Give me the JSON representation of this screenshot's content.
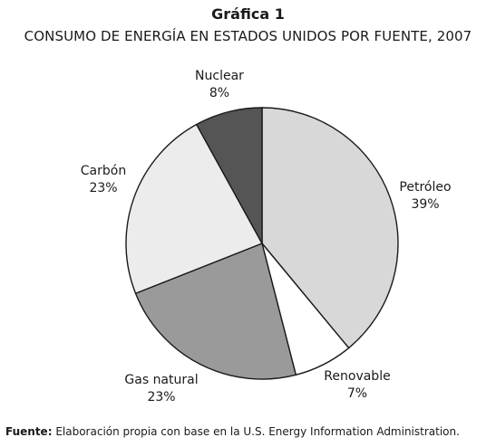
{
  "header": {
    "label": "Gráfica 1",
    "title": "CONSUMO DE ENERGÍA EN ESTADOS UNIDOS POR FUENTE, 2007"
  },
  "chart_data": {
    "type": "pie",
    "title": "CONSUMO DE ENERGÍA EN ESTADOS UNIDOS POR FUENTE, 2007",
    "slices": [
      {
        "label": "Petróleo",
        "value": 39,
        "value_label": "39%",
        "color": "#d8d8d8"
      },
      {
        "label": "Renovable",
        "value": 7,
        "value_label": "7%",
        "color": "#ffffff"
      },
      {
        "label": "Gas natural",
        "value": 23,
        "value_label": "23%",
        "color": "#9a9a9a"
      },
      {
        "label": "Carbón",
        "value": 23,
        "value_label": "23%",
        "color": "#ececec"
      },
      {
        "label": "Nuclear",
        "value": 8,
        "value_label": "8%",
        "color": "#555555"
      }
    ],
    "start": "12 o'clock",
    "direction": "clockwise"
  },
  "footer": {
    "source_label": "Fuente:",
    "source_text": "Elaboración propia con base en la U.S. Energy Information Administration."
  }
}
